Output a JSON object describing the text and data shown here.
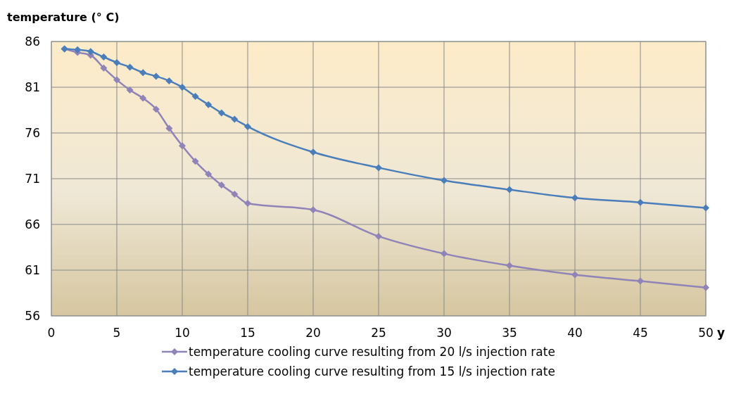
{
  "chart_data": {
    "type": "line",
    "ylabel": "temperature (° C)",
    "xlabel": "y",
    "x": [
      1,
      2,
      3,
      4,
      5,
      6,
      7,
      8,
      9,
      10,
      11,
      12,
      13,
      14,
      15,
      20,
      25,
      30,
      35,
      40,
      45,
      50
    ],
    "series": [
      {
        "name": "temperature cooling curve resulting from 20 l/s injection rate",
        "color": "#8f83b8",
        "values": [
          85.2,
          84.8,
          84.5,
          83.1,
          81.8,
          80.7,
          79.8,
          78.6,
          76.5,
          74.6,
          72.9,
          71.5,
          70.3,
          69.3,
          68.3,
          67.6,
          64.7,
          62.8,
          61.5,
          60.5,
          59.8,
          59.1
        ]
      },
      {
        "name": "temperature cooling curve resulting from 15 l/s injection rate",
        "color": "#4a7ebb",
        "values": [
          85.2,
          85.1,
          84.9,
          84.3,
          83.7,
          83.2,
          82.6,
          82.2,
          81.7,
          81.0,
          80.0,
          79.1,
          78.2,
          77.5,
          76.7,
          73.9,
          72.2,
          70.8,
          69.8,
          68.9,
          68.4,
          67.8
        ]
      }
    ],
    "xlim": [
      0,
      50
    ],
    "xticks": [
      0,
      5,
      10,
      15,
      20,
      25,
      30,
      35,
      40,
      45,
      50
    ],
    "ylim": [
      56,
      86
    ],
    "yticks": [
      56,
      61,
      66,
      71,
      76,
      81,
      86
    ],
    "grid": true,
    "legend": "bottom",
    "marker": "diamond",
    "line_style": "solid"
  }
}
